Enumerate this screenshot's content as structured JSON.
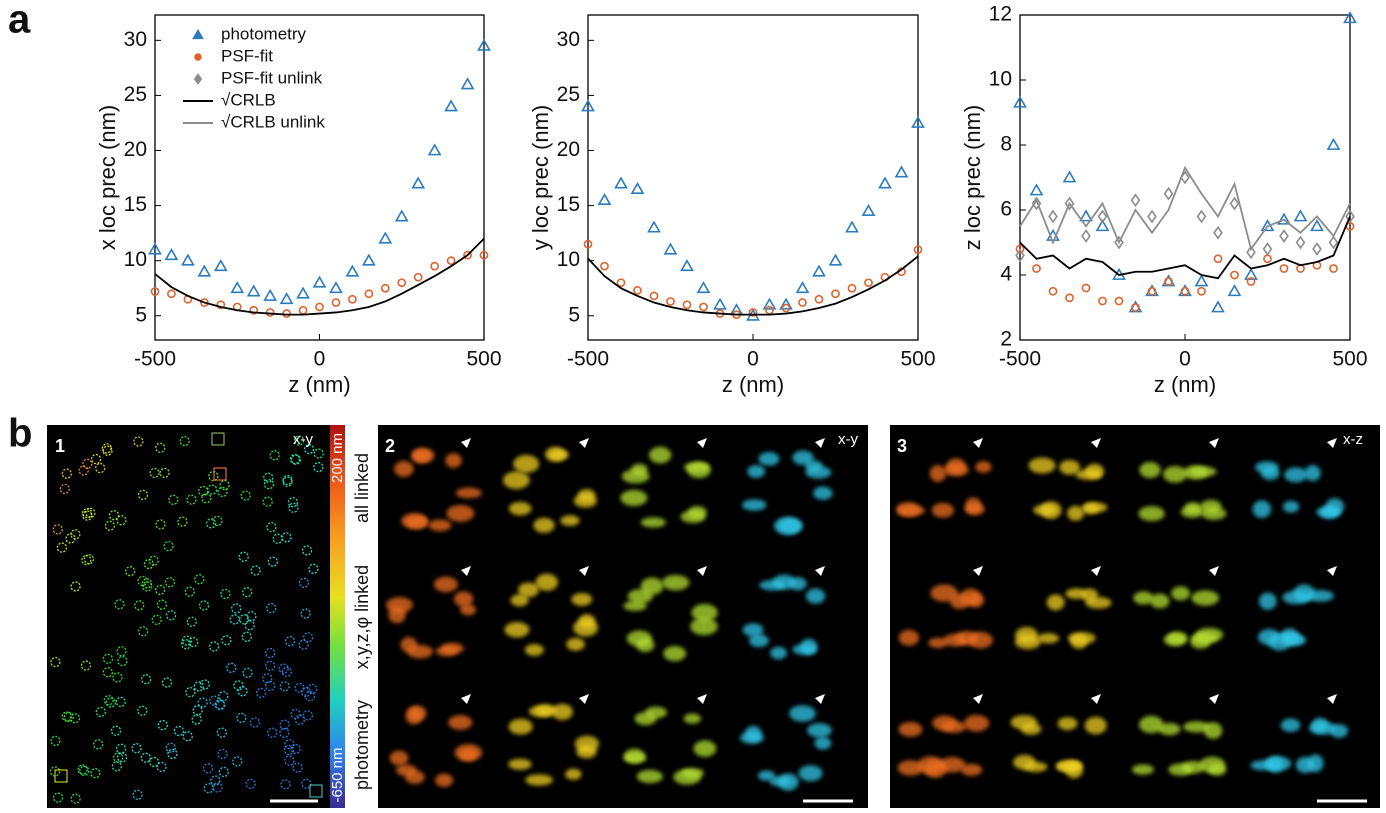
{
  "panel_a_label": "a",
  "panel_b_label": "b",
  "chart_data": [
    {
      "type": "scatter",
      "xlabel": "z (nm)",
      "ylabel": "x loc prec (nm)",
      "x": [
        -500,
        -450,
        -400,
        -350,
        -300,
        -250,
        -200,
        -150,
        -100,
        -50,
        0,
        50,
        100,
        150,
        200,
        250,
        300,
        350,
        400,
        450,
        500
      ],
      "xlim": [
        -500,
        500
      ],
      "xticks": [
        -500,
        0,
        500
      ],
      "ylim": [
        2.8,
        32.3
      ],
      "yticks": [
        5,
        10,
        15,
        20,
        25,
        30
      ],
      "series": [
        {
          "name": "photometry",
          "color": "#2a7bbf",
          "marker": "triangle",
          "values": [
            11,
            10.5,
            10,
            9,
            9.5,
            7.5,
            7.2,
            6.8,
            6.5,
            7,
            8,
            7.5,
            9,
            10,
            12,
            14,
            17,
            20,
            24,
            26,
            29.5
          ]
        },
        {
          "name": "PSF-fit",
          "color": "#e0622b",
          "marker": "circle",
          "values": [
            7.2,
            7,
            6.5,
            6.2,
            6,
            5.8,
            5.5,
            5.3,
            5.2,
            5.5,
            5.8,
            6.2,
            6.5,
            7,
            7.5,
            8,
            8.5,
            9.5,
            10,
            10.5,
            10.5
          ]
        },
        {
          "name": "√CRLB",
          "color": "#000000",
          "marker": "line",
          "values": [
            8.8,
            7.6,
            6.8,
            6.2,
            5.8,
            5.5,
            5.3,
            5.2,
            5.1,
            5.1,
            5.2,
            5.3,
            5.5,
            5.8,
            6.3,
            7,
            7.8,
            8.6,
            9.5,
            10.5,
            12
          ]
        }
      ],
      "legend": [
        {
          "name": "photometry",
          "color": "#2a7bbf",
          "marker": "triangle"
        },
        {
          "name": "PSF-fit",
          "color": "#e0622b",
          "marker": "circle"
        },
        {
          "name": "PSF-fit unlink",
          "color": "#8c8c8c",
          "marker": "diamond"
        },
        {
          "name": "√CRLB",
          "color": "#000000",
          "marker": "line"
        },
        {
          "name": "√CRLB unlink",
          "color": "#8c8c8c",
          "marker": "line"
        }
      ]
    },
    {
      "type": "scatter",
      "xlabel": "z (nm)",
      "ylabel": "y loc prec (nm)",
      "x": [
        -500,
        -450,
        -400,
        -350,
        -300,
        -250,
        -200,
        -150,
        -100,
        -50,
        0,
        50,
        100,
        150,
        200,
        250,
        300,
        350,
        400,
        450,
        500
      ],
      "xlim": [
        -500,
        500
      ],
      "xticks": [
        -500,
        0,
        500
      ],
      "ylim": [
        2.8,
        32.3
      ],
      "yticks": [
        5,
        10,
        15,
        20,
        25,
        30
      ],
      "series": [
        {
          "name": "photometry",
          "color": "#2a7bbf",
          "marker": "triangle",
          "values": [
            24,
            15.5,
            17,
            16.5,
            13,
            11,
            9.5,
            7.5,
            6,
            5.5,
            5,
            6,
            6,
            7.5,
            9,
            10,
            13,
            14.5,
            17,
            18,
            22.5
          ]
        },
        {
          "name": "PSF-fit",
          "color": "#e0622b",
          "marker": "circle",
          "values": [
            11.5,
            9.5,
            8,
            7.3,
            6.8,
            6.3,
            6,
            5.8,
            5.2,
            5.1,
            5.3,
            5.5,
            5.7,
            6.2,
            6.5,
            7,
            7.5,
            8,
            8.5,
            9,
            11
          ]
        },
        {
          "name": "√CRLB",
          "color": "#000000",
          "marker": "line",
          "values": [
            10.2,
            8.6,
            7.5,
            6.8,
            6.2,
            5.8,
            5.5,
            5.3,
            5.2,
            5.1,
            5.1,
            5.1,
            5.2,
            5.4,
            5.7,
            6.1,
            6.7,
            7.4,
            8.2,
            9.2,
            10.4
          ]
        }
      ]
    },
    {
      "type": "scatter",
      "xlabel": "z (nm)",
      "ylabel": "z loc prec (nm)",
      "x": [
        -500,
        -450,
        -400,
        -350,
        -300,
        -250,
        -200,
        -150,
        -100,
        -50,
        0,
        50,
        100,
        150,
        200,
        250,
        300,
        350,
        400,
        450,
        500
      ],
      "xlim": [
        -500,
        500
      ],
      "xticks": [
        -500,
        0,
        500
      ],
      "ylim": [
        2,
        12
      ],
      "yticks": [
        2,
        4,
        6,
        8,
        10,
        12
      ],
      "series": [
        {
          "name": "photometry",
          "color": "#2a7bbf",
          "marker": "triangle",
          "values": [
            9.3,
            6.6,
            5.2,
            7,
            5.8,
            5.5,
            4,
            3,
            3.5,
            3.8,
            3.5,
            3.8,
            3,
            3.5,
            4,
            5.5,
            5.7,
            5.8,
            5.5,
            8,
            11.9
          ]
        },
        {
          "name": "PSF-fit",
          "color": "#e0622b",
          "marker": "circle",
          "values": [
            4.8,
            4.2,
            3.5,
            3.3,
            3.6,
            3.2,
            3.2,
            3,
            3.5,
            3.8,
            3.5,
            3.5,
            4.5,
            4,
            3.8,
            4.5,
            4.2,
            4.2,
            4.3,
            4.2,
            5.5
          ]
        },
        {
          "name": "PSF-fit unlink",
          "color": "#8c8c8c",
          "marker": "diamond",
          "values": [
            4.6,
            6.2,
            5.8,
            6.2,
            5.2,
            5.8,
            5,
            6.3,
            5.8,
            6.5,
            7,
            5.8,
            5.3,
            6.2,
            4.7,
            4.8,
            5.2,
            5,
            4.8,
            5,
            5.8
          ]
        },
        {
          "name": "√CRLB",
          "color": "#000000",
          "marker": "line",
          "values": [
            5,
            4.5,
            4.6,
            4.2,
            4.5,
            4.4,
            4,
            4.1,
            4.1,
            4.2,
            4.3,
            4,
            3.9,
            4.6,
            4.2,
            4.3,
            4.5,
            4.3,
            4.4,
            4.6,
            5.8
          ]
        },
        {
          "name": "√CRLB unlink",
          "color": "#8c8c8c",
          "marker": "line",
          "values": [
            5.5,
            6.3,
            5,
            6.2,
            5.5,
            6.2,
            5,
            6,
            5.3,
            6,
            7.3,
            6.5,
            5.8,
            6.8,
            4.8,
            5.5,
            5.7,
            5.3,
            5.8,
            5.2,
            6.2
          ]
        }
      ]
    }
  ],
  "images": {
    "panel1": {
      "number": "1",
      "view": "x-y",
      "colorbar_top": "200 nm",
      "colorbar_bottom": "-650 nm"
    },
    "row_labels": [
      "all linked",
      "x,y,z,φ linked",
      "photometry"
    ],
    "panel2": {
      "number": "2",
      "view": "x-y"
    },
    "panel3": {
      "number": "3",
      "view": "x-z"
    }
  }
}
